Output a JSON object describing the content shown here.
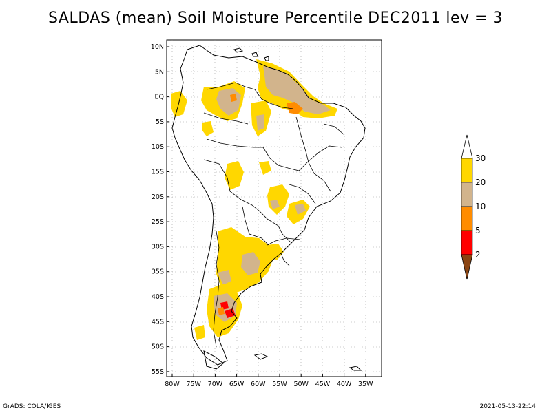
{
  "title": "SALDAS (mean) Soil Moisture Percentile DEC2011 lev = 3",
  "footer": {
    "left": "GrADS: COLA/IGES",
    "right": "2021-05-13-22:14"
  },
  "axes": {
    "lat_labels": [
      "10N",
      "5N",
      "EQ",
      "5S",
      "10S",
      "15S",
      "20S",
      "25S",
      "30S",
      "35S",
      "40S",
      "45S",
      "50S",
      "55S"
    ],
    "lon_labels": [
      "80W",
      "75W",
      "70W",
      "65W",
      "60W",
      "55W",
      "50W",
      "45W",
      "40W",
      "35W"
    ]
  },
  "colorbar": {
    "labels": [
      "30",
      "20",
      "10",
      "5",
      "2"
    ],
    "colors": {
      "above30": "#ffffff",
      "c20_30": "#ffd700",
      "c10_20": "#d2b48c",
      "c5_10": "#ff8c00",
      "c2_5": "#ff0000",
      "below2": "#8b4513"
    }
  },
  "map_style": {
    "coast_color": "#000000",
    "grid_color": "#999999"
  }
}
